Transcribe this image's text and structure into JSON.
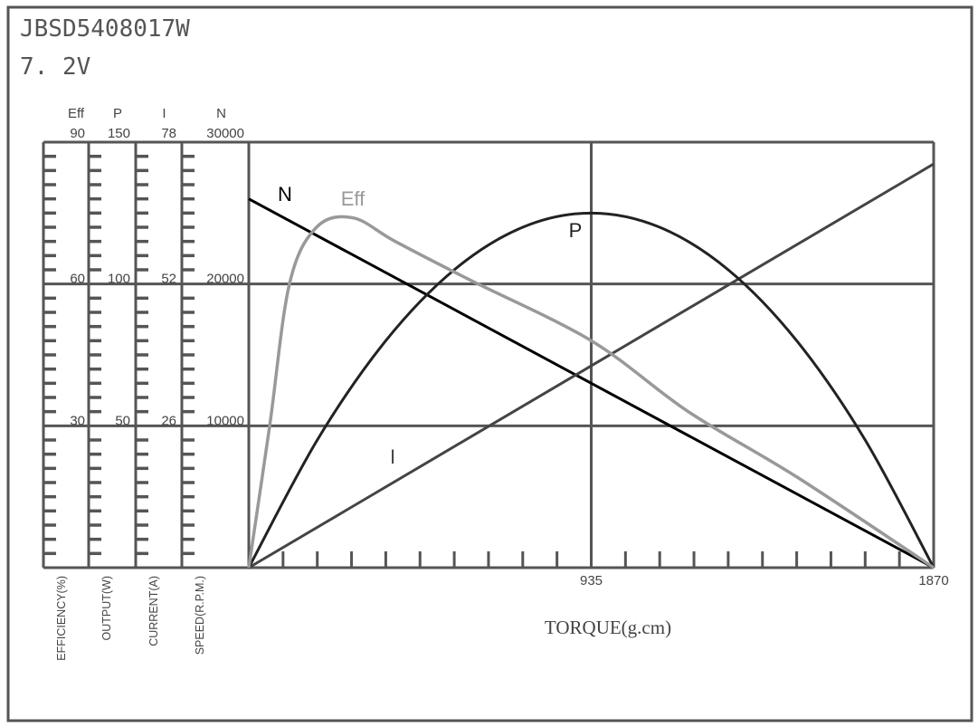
{
  "header": {
    "model": "JBSD5408017W",
    "voltage": "7. 2V"
  },
  "chart_data": {
    "type": "line",
    "title": "JBSD5408017W",
    "subtitle": "7. 2V",
    "xlabel": "TORQUE(g.cm)",
    "xlim": [
      0,
      1870
    ],
    "x_ticks": [
      "935",
      "1870"
    ],
    "x_tick_values": [
      935,
      1870
    ],
    "grid": true,
    "axes": [
      {
        "key": "Eff",
        "label": "EFFICIENCY(%)",
        "header": "Eff",
        "max": 90,
        "ticks": [
          "90",
          "60",
          "30"
        ]
      },
      {
        "key": "P",
        "label": "OUTPUT(W)",
        "header": "P",
        "max": 150,
        "ticks": [
          "150",
          "100",
          "50"
        ]
      },
      {
        "key": "I",
        "label": "CURRENT(A)",
        "header": "I",
        "max": 78,
        "ticks": [
          "78",
          "52",
          "26"
        ]
      },
      {
        "key": "N",
        "label": "SPEED(R.P.M.)",
        "header": "N",
        "max": 30000,
        "ticks": [
          "30000",
          "20000",
          "10000"
        ]
      }
    ],
    "series": [
      {
        "name": "N",
        "axis": "N",
        "color": "#000000",
        "x": [
          0,
          1870
        ],
        "y": [
          26000,
          0
        ]
      },
      {
        "name": "I",
        "axis": "I",
        "color": "#444444",
        "x": [
          0,
          1870
        ],
        "y": [
          0,
          74
        ]
      },
      {
        "name": "P",
        "axis": "P",
        "color": "#222222",
        "x": [
          0,
          187,
          374,
          561,
          748,
          935,
          1122,
          1309,
          1496,
          1683,
          1870
        ],
        "y": [
          0,
          45,
          80,
          105,
          120,
          125,
          120,
          105,
          80,
          45,
          0
        ]
      },
      {
        "name": "Eff",
        "axis": "Eff",
        "color": "#999999",
        "x": [
          0,
          57,
          111,
          185,
          284,
          400,
          600,
          935,
          1200,
          1500,
          1870
        ],
        "y": [
          0,
          30,
          60,
          72,
          74,
          69,
          61,
          48,
          33,
          19,
          0
        ]
      }
    ]
  }
}
